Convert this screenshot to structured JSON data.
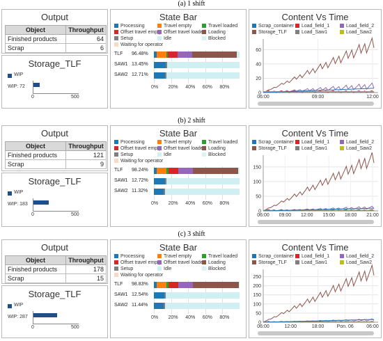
{
  "sections": [
    {
      "label": "(a) 1 shift",
      "output": {
        "title": "Output",
        "headers": [
          "Object",
          "Throughput"
        ],
        "rows": [
          [
            "Finished products",
            "64"
          ],
          [
            "Scrap",
            "6"
          ]
        ]
      },
      "storage": {
        "title": "Storage_TLF",
        "legend": "WIP",
        "wip_label": "WIP: 72",
        "wip_value": 72,
        "ticks": [
          "0",
          "500"
        ]
      },
      "state_bar": {
        "title": "State Bar",
        "legend": [
          "Processing",
          "Travel empty",
          "Travel loaded",
          "Offset travel empty",
          "Offset travel loaded",
          "Loading",
          "Setup",
          "Idle",
          "Blocked",
          "Waiting for operator"
        ],
        "rows": [
          {
            "name": "TLF",
            "pct": "96.48%"
          },
          {
            "name": "SAW1",
            "pct": "13.45%"
          },
          {
            "name": "SAW2",
            "pct": "12.71%"
          }
        ],
        "ticks": [
          "0%",
          "20%",
          "40%",
          "60%",
          "80%"
        ]
      },
      "content": {
        "title": "Content Vs Time",
        "legend": [
          "Scrap_container",
          "Load_field_1",
          "Load_field_2",
          "Storage_TLF",
          "Load_Saw1",
          "Load_Saw2"
        ],
        "y_ticks": [
          "0",
          "20",
          "40",
          "60"
        ],
        "x_ticks": [
          "06:00",
          "09:00",
          "12:00"
        ],
        "ymax": 75
      }
    },
    {
      "label": "(b) 2 shift",
      "output": {
        "title": "Output",
        "headers": [
          "Object",
          "Throughput"
        ],
        "rows": [
          [
            "Finished products",
            "121"
          ],
          [
            "Scrap",
            "9"
          ]
        ]
      },
      "storage": {
        "title": "Storage_TLF",
        "legend": "WIP",
        "wip_label": "WIP: 183",
        "wip_value": 183,
        "ticks": [
          "0",
          "500"
        ]
      },
      "state_bar": {
        "title": "State Bar",
        "legend": [
          "Processing",
          "Travel empty",
          "Travel loaded",
          "Offset travel empty",
          "Offset travel loaded",
          "Loading",
          "Setup",
          "Idle",
          "Blocked",
          "Waiting for operator"
        ],
        "rows": [
          {
            "name": "TLF",
            "pct": "98.24%"
          },
          {
            "name": "SAW1",
            "pct": "12.72%"
          },
          {
            "name": "SAW2",
            "pct": "11.32%"
          }
        ],
        "ticks": [
          "0%",
          "20%",
          "40%",
          "60%",
          "80%"
        ]
      },
      "content": {
        "title": "Content Vs Time",
        "legend": [
          "Scrap_container",
          "Load_field_1",
          "Load_field_2",
          "Storage_TLF",
          "Load_Saw1",
          "Load_Saw2"
        ],
        "y_ticks": [
          "0",
          "50",
          "100",
          "150"
        ],
        "x_ticks": [
          "06:00",
          "09:00",
          "12:00",
          "15:00",
          "18:00",
          "21:00"
        ],
        "ymax": 190
      }
    },
    {
      "label": "(c) 3 shift",
      "output": {
        "title": "Output",
        "headers": [
          "Object",
          "Throughput"
        ],
        "rows": [
          [
            "Finished products",
            "178"
          ],
          [
            "Scrap",
            "15"
          ]
        ]
      },
      "storage": {
        "title": "Storage_TLF",
        "legend": "WIP",
        "wip_label": "WIP: 287",
        "wip_value": 287,
        "ticks": [
          "0",
          "500"
        ]
      },
      "state_bar": {
        "title": "State Bar",
        "legend": [
          "Processing",
          "Travel empty",
          "Travel loaded",
          "Offset travel empty",
          "Offset travel loaded",
          "Loading",
          "Setup",
          "Idle",
          "Blocked",
          "Waiting for operator"
        ],
        "rows": [
          {
            "name": "TLF",
            "pct": "98.83%"
          },
          {
            "name": "SAW1",
            "pct": "12.54%"
          },
          {
            "name": "SAW2",
            "pct": "11.44%"
          }
        ],
        "ticks": [
          "0%",
          "20%",
          "40%",
          "60%",
          "80%"
        ]
      },
      "content": {
        "title": "Content Vs Time",
        "legend": [
          "Scrap_container",
          "Load_field_1",
          "Load_field_2",
          "Storage_TLF",
          "Load_Saw1",
          "Load_Saw2"
        ],
        "y_ticks": [
          "0",
          "50",
          "100",
          "150",
          "200",
          "250"
        ],
        "x_ticks": [
          "06:00",
          "12:00",
          "18:00",
          "Pon. 06",
          "06:00"
        ],
        "ymax": 290
      }
    }
  ],
  "colors": {
    "Processing": "#1f77b4",
    "Travel empty": "#ff7f0e",
    "Travel loaded": "#2ca02c",
    "Offset travel empty": "#d62728",
    "Offset travel loaded": "#9467bd",
    "Loading": "#8c564b",
    "Setup": "#7f7f7f",
    "Idle": "#cfeff2",
    "Blocked": "#d9f3f5",
    "Waiting for operator": "#f7d9c4",
    "Scrap_container": "#1f77b4",
    "Load_field_1": "#d62728",
    "Load_field_2": "#9467bd",
    "Storage_TLF": "#8c564b",
    "Load_Saw1": "#7f7f7f",
    "Load_Saw2": "#bcbd22",
    "wip": "#1f4e8c"
  }
}
